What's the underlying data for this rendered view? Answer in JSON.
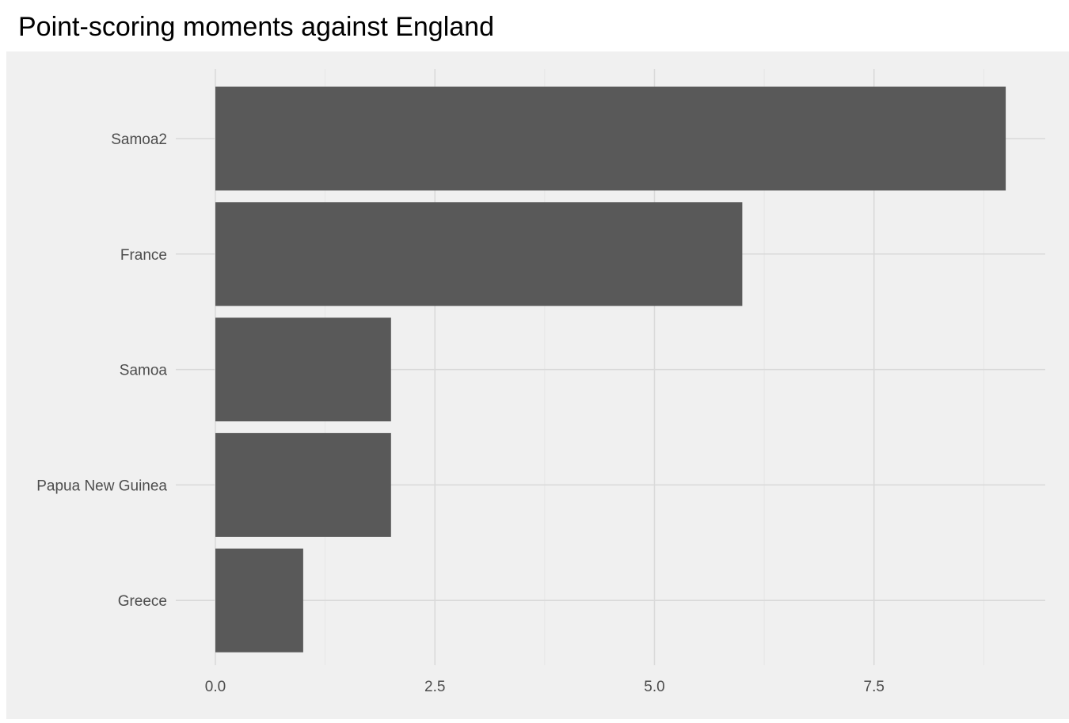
{
  "page": {
    "title": "Point-scoring moments against England"
  },
  "chart_data": {
    "type": "bar",
    "orientation": "horizontal",
    "title": "Point-scoring moments against England",
    "xlabel": "",
    "ylabel": "",
    "categories": [
      "Samoa2",
      "France",
      "Samoa",
      "Papua New Guinea",
      "Greece"
    ],
    "values": [
      9,
      6,
      2,
      2,
      1
    ],
    "xlim": [
      0,
      9.4
    ],
    "xticks": [
      "0.0",
      "2.5",
      "5.0",
      "7.5"
    ],
    "xtick_values": [
      0,
      2.5,
      5,
      7.5
    ],
    "grid": true,
    "legend": "none",
    "colors": {
      "bar": "#595959",
      "panel_background": "#f0f0f0",
      "grid_major": "#d9d9d9",
      "grid_minor": "#e4e4e4",
      "tick_label": "#4d4d4d"
    }
  }
}
